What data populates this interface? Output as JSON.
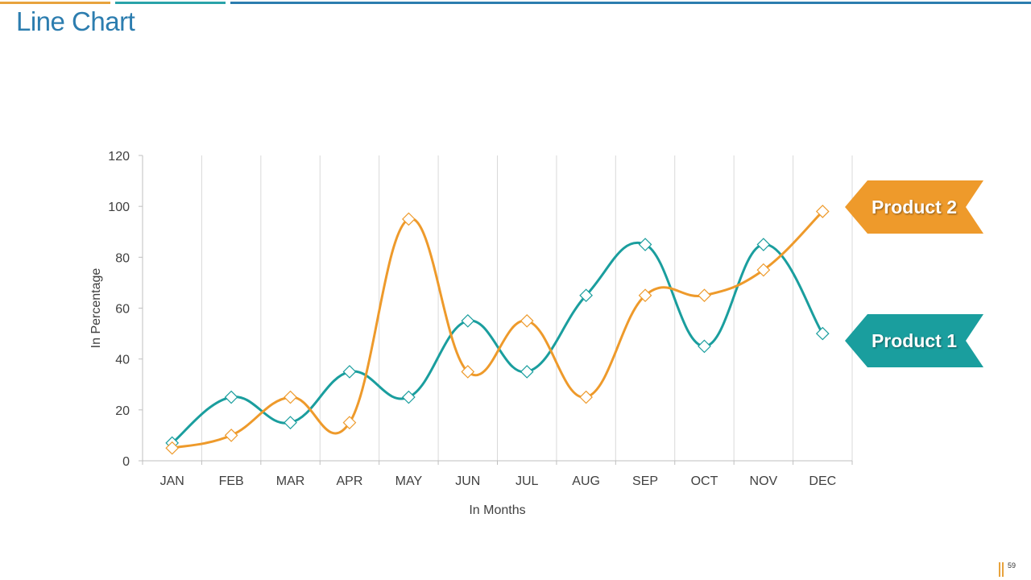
{
  "slide": {
    "title": "Line Chart",
    "page_number": "59"
  },
  "colors": {
    "product1": "#1A9E9E",
    "product2": "#EE9A2B",
    "title": "#2C7DAF",
    "grid": "#D9D9D9",
    "axis_text": "#404040"
  },
  "callouts": {
    "product2_label": "Product 2",
    "product1_label": "Product 1"
  },
  "chart_data": {
    "type": "line",
    "categories": [
      "JAN",
      "FEB",
      "MAR",
      "APR",
      "MAY",
      "JUN",
      "JUL",
      "AUG",
      "SEP",
      "OCT",
      "NOV",
      "DEC"
    ],
    "series": [
      {
        "name": "Product 1",
        "values": [
          7,
          25,
          15,
          35,
          25,
          55,
          35,
          65,
          85,
          45,
          85,
          50
        ]
      },
      {
        "name": "Product 2",
        "values": [
          5,
          10,
          25,
          15,
          95,
          35,
          55,
          25,
          65,
          65,
          75,
          98
        ]
      }
    ],
    "xlabel": "In Months",
    "ylabel": "In Percentage",
    "ylim": [
      0,
      120
    ],
    "yticks": [
      0,
      20,
      40,
      60,
      80,
      100,
      120
    ],
    "grid": "vertical",
    "marker": "diamond",
    "smooth": true
  }
}
